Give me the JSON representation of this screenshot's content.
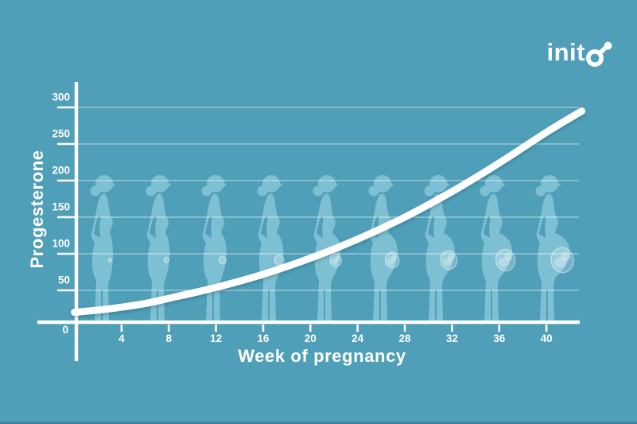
{
  "app": {
    "logo_text": "inito",
    "background_color": "#4F9FB8",
    "accent_color": "#FFFFFF",
    "figure_color": "#7EC0D3"
  },
  "chart_data": {
    "type": "line",
    "title": "",
    "xlabel": "Week of pregnancy",
    "ylabel": "Progesterone",
    "x_origin_label": "0",
    "x_ticks": [
      4,
      8,
      12,
      16,
      20,
      24,
      28,
      32,
      36,
      40
    ],
    "y_ticks": [
      50,
      100,
      150,
      200,
      250,
      300
    ],
    "xlim": [
      0,
      43
    ],
    "ylim": [
      0,
      320
    ],
    "grid": "horizontal-only",
    "legend": "none",
    "line_color": "#FFFFFF",
    "series": [
      {
        "name": "Progesterone",
        "points": [
          [
            0,
            20
          ],
          [
            2,
            23
          ],
          [
            4,
            27
          ],
          [
            6,
            32
          ],
          [
            8,
            39
          ],
          [
            12,
            54
          ],
          [
            16,
            72
          ],
          [
            20,
            94
          ],
          [
            24,
            120
          ],
          [
            28,
            150
          ],
          [
            32,
            185
          ],
          [
            36,
            224
          ],
          [
            40,
            266
          ],
          [
            43,
            295
          ]
        ]
      }
    ],
    "background_figures": {
      "count": 9,
      "description": "silhouettes of a woman at progressively later stages of pregnancy, belly and fetus growing left to right",
      "belly_progression": [
        0.03,
        0.12,
        0.22,
        0.33,
        0.45,
        0.57,
        0.7,
        0.84,
        1.0
      ]
    }
  }
}
